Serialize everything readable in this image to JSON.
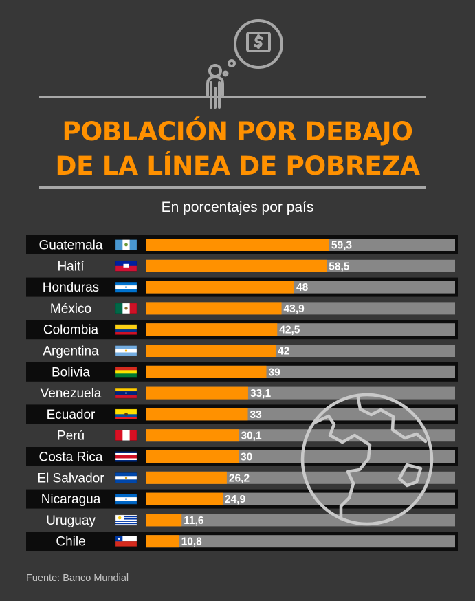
{
  "title_lines": [
    "POBLACIÓN POR DEBAJO",
    "DE LA LÍNEA DE POBREZA"
  ],
  "subtitle": "En porcentajes por país",
  "source": "Fuente: Banco Mundial",
  "colors": {
    "background": "#373737",
    "accent": "#ff9100",
    "track": "#878787",
    "label_dark": "#0c0c0c",
    "label_light": "#373737"
  },
  "icons": {
    "header": "person-dollar-thought-icon",
    "globe": "globe-icon"
  },
  "chart_data": {
    "type": "bar",
    "orientation": "horizontal",
    "title": "POBLACIÓN POR DEBAJO DE LA LÍNEA DE POBREZA",
    "subtitle": "En porcentajes por país",
    "unit": "%",
    "xlim": [
      0,
      100
    ],
    "categories": [
      "Guatemala",
      "Haití",
      "Honduras",
      "México",
      "Colombia",
      "Argentina",
      "Bolivia",
      "Venezuela",
      "Ecuador",
      "Perú",
      "Costa Rica",
      "El Salvador",
      "Nicaragua",
      "Uruguay",
      "Chile"
    ],
    "values": [
      59.3,
      58.5,
      48,
      43.9,
      42.5,
      42,
      39,
      33.1,
      33,
      30.1,
      30,
      26.2,
      24.9,
      11.6,
      10.8
    ],
    "value_labels": [
      "59,3",
      "58,5",
      "48",
      "43,9",
      "42,5",
      "42",
      "39",
      "33,1",
      "33",
      "30,1",
      "30",
      "26,2",
      "24,9",
      "11,6",
      "10,8"
    ],
    "flags": [
      "guatemala-flag-icon",
      "haiti-flag-icon",
      "honduras-flag-icon",
      "mexico-flag-icon",
      "colombia-flag-icon",
      "argentina-flag-icon",
      "bolivia-flag-icon",
      "venezuela-flag-icon",
      "ecuador-flag-icon",
      "peru-flag-icon",
      "costa-rica-flag-icon",
      "el-salvador-flag-icon",
      "nicaragua-flag-icon",
      "uruguay-flag-icon",
      "chile-flag-icon"
    ],
    "source": "Fuente: Banco Mundial"
  }
}
